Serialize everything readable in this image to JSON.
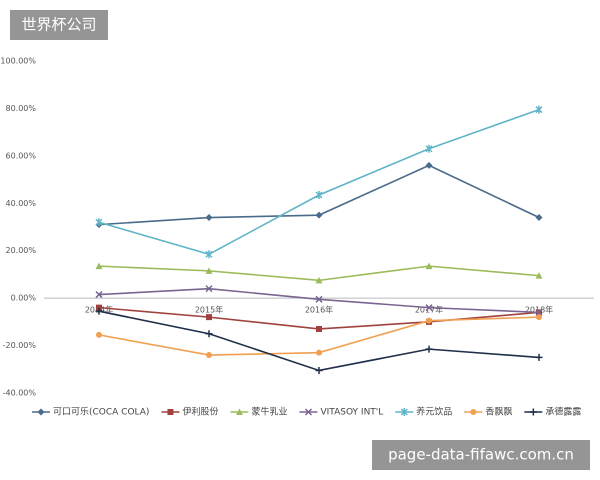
{
  "chart_data": {
    "type": "line",
    "categories": [
      "2014年",
      "2015年",
      "2016年",
      "2017年",
      "2018年"
    ],
    "series": [
      {
        "name": "可口可乐(COCA COLA)",
        "color": "#4a6b8a",
        "marker": "diamond",
        "values": [
          31,
          34,
          35,
          56,
          34
        ]
      },
      {
        "name": "伊利股份",
        "color": "#a0413e",
        "marker": "square",
        "values": [
          -4,
          -8,
          -13,
          -10,
          -6
        ]
      },
      {
        "name": "蒙牛乳业",
        "color": "#9bbb59",
        "marker": "triangle",
        "values": [
          13.5,
          11.5,
          7.5,
          13.5,
          9.5
        ]
      },
      {
        "name": "VITASOY INT'L",
        "color": "#7a6590",
        "marker": "x",
        "values": [
          1.5,
          4,
          -0.5,
          -4,
          -6
        ]
      },
      {
        "name": "养元饮品",
        "color": "#5fb4c8",
        "marker": "star",
        "values": [
          32,
          18.5,
          43.5,
          63,
          79.5
        ]
      },
      {
        "name": "香飘飘",
        "color": "#f0a050",
        "marker": "circle",
        "values": [
          -15.5,
          -24,
          -23,
          -9.5,
          -8
        ]
      },
      {
        "name": "承德露露",
        "color": "#1f2f4a",
        "marker": "plus",
        "values": [
          -5.5,
          -15,
          -30.5,
          -21.5,
          -25
        ]
      }
    ],
    "ylim": [
      -40,
      100
    ],
    "yticks": [
      {
        "value": -40,
        "label": "-40.00%"
      },
      {
        "value": -20,
        "label": "-20.00%"
      },
      {
        "value": 0,
        "label": "0.00%"
      },
      {
        "value": 20,
        "label": "20.00%"
      },
      {
        "value": 40,
        "label": "40.00%"
      },
      {
        "value": 60,
        "label": "60.00%"
      },
      {
        "value": 80,
        "label": "80.00%"
      },
      {
        "value": 100,
        "label": "100.00%"
      }
    ],
    "grid": false,
    "legend": "bottom"
  },
  "watermarks": {
    "top": "世界杯公司",
    "bottom": "page-data-fifawc.com.cn"
  }
}
